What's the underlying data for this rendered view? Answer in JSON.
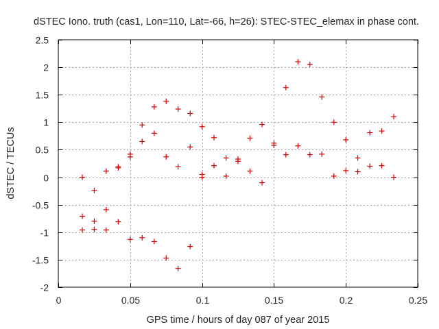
{
  "chart_data": {
    "type": "scatter",
    "title": "dSTEC Iono. truth (cas1, Lon=110, Lat=-66, h=26): STEC-STEC_elemax in phase cont.",
    "xlabel": "GPS time / hours of day 087 of year 2015",
    "ylabel": "dSTEC  / TECUs",
    "xlim": [
      0,
      0.25
    ],
    "ylim": [
      -2,
      2.5
    ],
    "x_ticks": [
      "0",
      "0.05",
      "0.1",
      "0.15",
      "0.2",
      "0.25"
    ],
    "x_tick_values": [
      0,
      0.05,
      0.1,
      0.15,
      0.2,
      0.25
    ],
    "y_ticks": [
      "2.5",
      "2",
      "1.5",
      "1",
      "0.5",
      "0",
      "-0.5",
      "-1",
      "-1.5",
      "-2"
    ],
    "y_tick_values": [
      2.5,
      2,
      1.5,
      1,
      0.5,
      0,
      -0.5,
      -1,
      -1.5,
      -2
    ],
    "grid": true,
    "marker": "+",
    "color": "#d00000",
    "series": [
      {
        "name": "STEC-STEC_elemax",
        "points": [
          [
            0.0167,
            0.0
          ],
          [
            0.0167,
            -0.71
          ],
          [
            0.0167,
            -0.96
          ],
          [
            0.025,
            -0.24
          ],
          [
            0.025,
            -0.8
          ],
          [
            0.025,
            -0.95
          ],
          [
            0.0333,
            0.11
          ],
          [
            0.0333,
            -0.59
          ],
          [
            0.0333,
            -0.96
          ],
          [
            0.0417,
            0.19
          ],
          [
            0.0417,
            0.17
          ],
          [
            0.0417,
            -0.81
          ],
          [
            0.05,
            0.42
          ],
          [
            0.05,
            0.37
          ],
          [
            0.05,
            -1.13
          ],
          [
            0.0583,
            0.95
          ],
          [
            0.0583,
            0.65
          ],
          [
            0.0583,
            -1.1
          ],
          [
            0.0667,
            1.28
          ],
          [
            0.0667,
            0.8
          ],
          [
            0.0667,
            -1.17
          ],
          [
            0.075,
            1.38
          ],
          [
            0.075,
            0.37
          ],
          [
            0.075,
            -1.47
          ],
          [
            0.0833,
            1.24
          ],
          [
            0.0833,
            0.19
          ],
          [
            0.0833,
            -1.66
          ],
          [
            0.0917,
            1.16
          ],
          [
            0.0917,
            0.55
          ],
          [
            0.0917,
            -1.26
          ],
          [
            0.1,
            0.92
          ],
          [
            0.1,
            0.05
          ],
          [
            0.1,
            0.0
          ],
          [
            0.1083,
            0.72
          ],
          [
            0.1083,
            0.21
          ],
          [
            0.1167,
            0.35
          ],
          [
            0.1167,
            0.02
          ],
          [
            0.125,
            0.33
          ],
          [
            0.125,
            0.29
          ],
          [
            0.1333,
            0.71
          ],
          [
            0.1333,
            0.11
          ],
          [
            0.1417,
            0.96
          ],
          [
            0.1417,
            -0.1
          ],
          [
            0.15,
            0.62
          ],
          [
            0.15,
            0.58
          ],
          [
            0.1583,
            1.63
          ],
          [
            0.1583,
            0.41
          ],
          [
            0.1667,
            2.1
          ],
          [
            0.1667,
            0.57
          ],
          [
            0.175,
            2.05
          ],
          [
            0.175,
            0.41
          ],
          [
            0.1833,
            1.46
          ],
          [
            0.1833,
            0.42
          ],
          [
            0.1917,
            1.0
          ],
          [
            0.1917,
            0.02
          ],
          [
            0.2,
            0.68
          ],
          [
            0.2,
            0.12
          ],
          [
            0.2083,
            0.35
          ],
          [
            0.2083,
            0.1
          ],
          [
            0.2167,
            0.81
          ],
          [
            0.2167,
            0.2
          ],
          [
            0.225,
            0.84
          ],
          [
            0.225,
            0.21
          ],
          [
            0.2333,
            1.1
          ],
          [
            0.2333,
            0.0
          ]
        ]
      }
    ]
  }
}
